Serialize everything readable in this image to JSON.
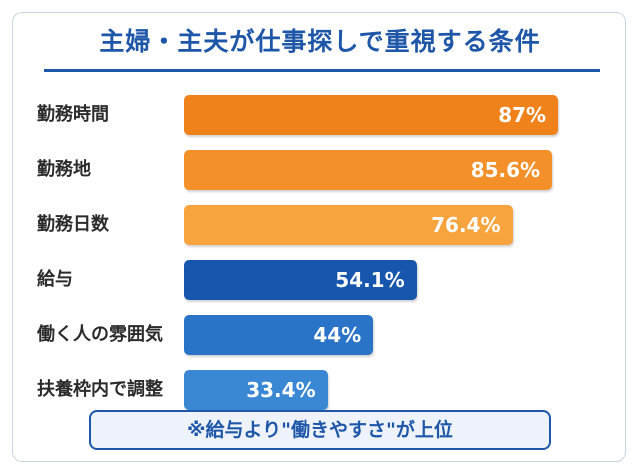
{
  "chart_data": {
    "type": "bar",
    "orientation": "horizontal",
    "title": "主婦・主夫が仕事探しで重視する条件",
    "categories": [
      "勤務時間",
      "勤務地",
      "勤務日数",
      "給与",
      "働く人の雰囲気",
      "扶養枠内で調整"
    ],
    "values": [
      87,
      85.6,
      76.4,
      54.1,
      44,
      33.4
    ],
    "value_labels": [
      "87%",
      "85.6%",
      "76.4%",
      "54.1%",
      "44%",
      "33.4%"
    ],
    "colors": [
      "#f0821c",
      "#f3902a",
      "#f7a43e",
      "#1657ad",
      "#2a74c7",
      "#3a88d4"
    ],
    "xlim": [
      0,
      100
    ],
    "grid": false,
    "legend": "none"
  },
  "note": "※給与より\"働きやすさ\"が上位"
}
